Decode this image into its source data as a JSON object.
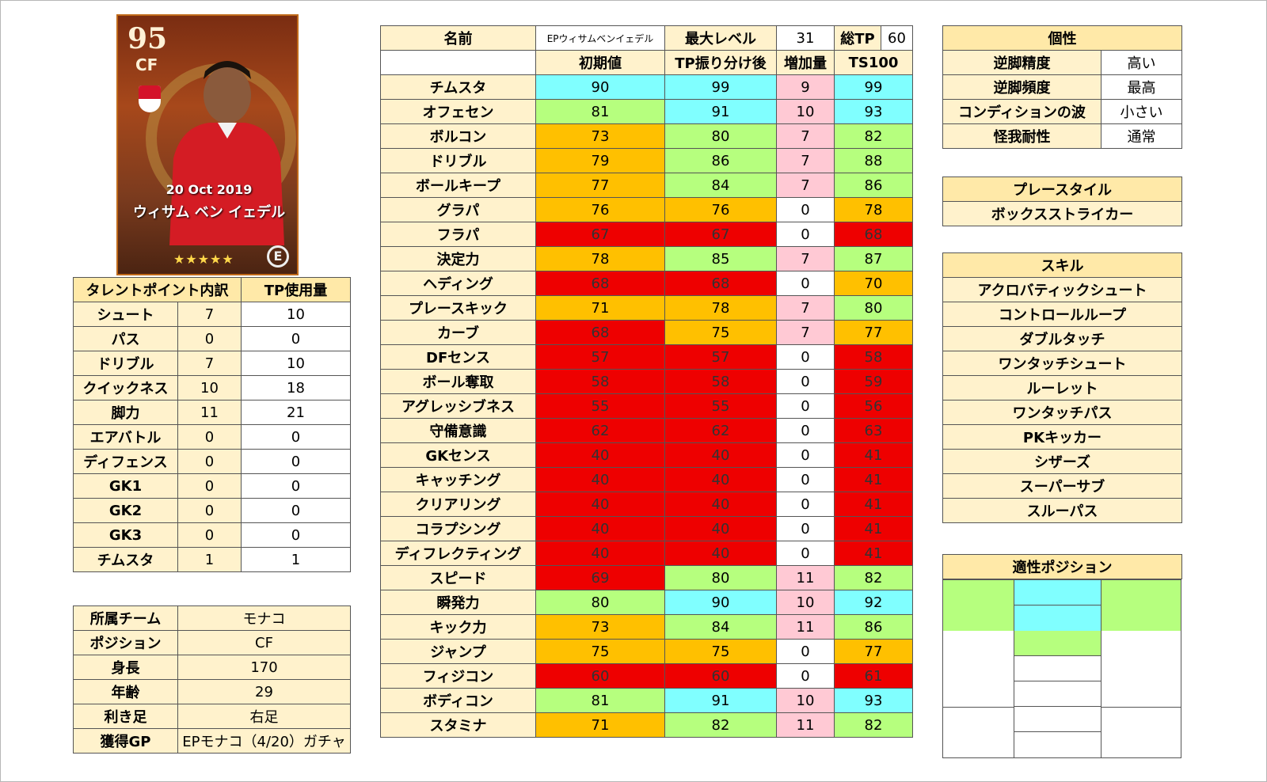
{
  "card": {
    "rating": "95",
    "position": "CF",
    "date": "20 Oct 2019",
    "name": "ウィサム ベン イェデル",
    "stars": "★★★★★",
    "logo": "E"
  },
  "talent": {
    "header": [
      "タレントポイント内訳",
      "TP使用量"
    ],
    "rows": [
      {
        "label": "シュート",
        "points": "7",
        "tp": "10"
      },
      {
        "label": "パス",
        "points": "0",
        "tp": "0"
      },
      {
        "label": "ドリブル",
        "points": "7",
        "tp": "10"
      },
      {
        "label": "クイックネス",
        "points": "10",
        "tp": "18"
      },
      {
        "label": "脚力",
        "points": "11",
        "tp": "21"
      },
      {
        "label": "エアバトル",
        "points": "0",
        "tp": "0"
      },
      {
        "label": "ディフェンス",
        "points": "0",
        "tp": "0"
      },
      {
        "label": "GK1",
        "points": "0",
        "tp": "0"
      },
      {
        "label": "GK2",
        "points": "0",
        "tp": "0"
      },
      {
        "label": "GK3",
        "points": "0",
        "tp": "0"
      },
      {
        "label": "チムスタ",
        "points": "1",
        "tp": "1"
      }
    ]
  },
  "info": {
    "rows": [
      {
        "label": "所属チーム",
        "value": "モナコ"
      },
      {
        "label": "ポジション",
        "value": "CF"
      },
      {
        "label": "身長",
        "value": "170"
      },
      {
        "label": "年齢",
        "value": "29"
      },
      {
        "label": "利き足",
        "value": "右足"
      },
      {
        "label": "獲得GP",
        "value": "EPモナコ（4/20）ガチャ"
      }
    ]
  },
  "stats": {
    "name_label": "名前",
    "name_value": "EPウィサムベンイェデル",
    "max_level_label": "最大レベル",
    "max_level_value": "31",
    "total_tp_label": "総TP",
    "total_tp_value": "60",
    "columns": [
      "初期値",
      "TP振り分け後",
      "増加量",
      "TS100"
    ],
    "rows": [
      {
        "label": "チムスタ",
        "base": "90",
        "after": "99",
        "inc": "9",
        "ts": "99",
        "c": [
          "cyan",
          "cyan",
          "pink",
          "cyan"
        ]
      },
      {
        "label": "オフェセン",
        "base": "81",
        "after": "91",
        "inc": "10",
        "ts": "93",
        "c": [
          "green",
          "cyan",
          "pink",
          "cyan"
        ]
      },
      {
        "label": "ボルコン",
        "base": "73",
        "after": "80",
        "inc": "7",
        "ts": "82",
        "c": [
          "orange",
          "green",
          "pink",
          "green"
        ]
      },
      {
        "label": "ドリブル",
        "base": "79",
        "after": "86",
        "inc": "7",
        "ts": "88",
        "c": [
          "orange",
          "green",
          "pink",
          "green"
        ]
      },
      {
        "label": "ボールキープ",
        "base": "77",
        "after": "84",
        "inc": "7",
        "ts": "86",
        "c": [
          "orange",
          "green",
          "pink",
          "green"
        ]
      },
      {
        "label": "グラパ",
        "base": "76",
        "after": "76",
        "inc": "0",
        "ts": "78",
        "c": [
          "orange",
          "orange",
          "white",
          "orange"
        ]
      },
      {
        "label": "フラパ",
        "base": "67",
        "after": "67",
        "inc": "0",
        "ts": "68",
        "c": [
          "red",
          "red",
          "white",
          "red"
        ]
      },
      {
        "label": "決定力",
        "base": "78",
        "after": "85",
        "inc": "7",
        "ts": "87",
        "c": [
          "orange",
          "green",
          "pink",
          "green"
        ]
      },
      {
        "label": "ヘディング",
        "base": "68",
        "after": "68",
        "inc": "0",
        "ts": "70",
        "c": [
          "red",
          "red",
          "white",
          "orange"
        ]
      },
      {
        "label": "プレースキック",
        "base": "71",
        "after": "78",
        "inc": "7",
        "ts": "80",
        "c": [
          "orange",
          "orange",
          "pink",
          "green"
        ]
      },
      {
        "label": "カーブ",
        "base": "68",
        "after": "75",
        "inc": "7",
        "ts": "77",
        "c": [
          "red",
          "orange",
          "pink",
          "orange"
        ]
      },
      {
        "label": "DFセンス",
        "base": "57",
        "after": "57",
        "inc": "0",
        "ts": "58",
        "c": [
          "red",
          "red",
          "white",
          "red"
        ]
      },
      {
        "label": "ボール奪取",
        "base": "58",
        "after": "58",
        "inc": "0",
        "ts": "59",
        "c": [
          "red",
          "red",
          "white",
          "red"
        ]
      },
      {
        "label": "アグレッシブネス",
        "base": "55",
        "after": "55",
        "inc": "0",
        "ts": "56",
        "c": [
          "red",
          "red",
          "white",
          "red"
        ]
      },
      {
        "label": "守備意識",
        "base": "62",
        "after": "62",
        "inc": "0",
        "ts": "63",
        "c": [
          "red",
          "red",
          "white",
          "red"
        ]
      },
      {
        "label": "GKセンス",
        "base": "40",
        "after": "40",
        "inc": "0",
        "ts": "41",
        "c": [
          "red",
          "red",
          "white",
          "red"
        ]
      },
      {
        "label": "キャッチング",
        "base": "40",
        "after": "40",
        "inc": "0",
        "ts": "41",
        "c": [
          "red",
          "red",
          "white",
          "red"
        ]
      },
      {
        "label": "クリアリング",
        "base": "40",
        "after": "40",
        "inc": "0",
        "ts": "41",
        "c": [
          "red",
          "red",
          "white",
          "red"
        ]
      },
      {
        "label": "コラプシング",
        "base": "40",
        "after": "40",
        "inc": "0",
        "ts": "41",
        "c": [
          "red",
          "red",
          "white",
          "red"
        ]
      },
      {
        "label": "ディフレクティング",
        "base": "40",
        "after": "40",
        "inc": "0",
        "ts": "41",
        "c": [
          "red",
          "red",
          "white",
          "red"
        ]
      },
      {
        "label": "スピード",
        "base": "69",
        "after": "80",
        "inc": "11",
        "ts": "82",
        "c": [
          "red",
          "green",
          "pink",
          "green"
        ]
      },
      {
        "label": "瞬発力",
        "base": "80",
        "after": "90",
        "inc": "10",
        "ts": "92",
        "c": [
          "green",
          "cyan",
          "pink",
          "cyan"
        ]
      },
      {
        "label": "キック力",
        "base": "73",
        "after": "84",
        "inc": "11",
        "ts": "86",
        "c": [
          "orange",
          "green",
          "pink",
          "green"
        ]
      },
      {
        "label": "ジャンプ",
        "base": "75",
        "after": "75",
        "inc": "0",
        "ts": "77",
        "c": [
          "orange",
          "orange",
          "white",
          "orange"
        ]
      },
      {
        "label": "フィジコン",
        "base": "60",
        "after": "60",
        "inc": "0",
        "ts": "61",
        "c": [
          "red",
          "red",
          "white",
          "red"
        ]
      },
      {
        "label": "ボディコン",
        "base": "81",
        "after": "91",
        "inc": "10",
        "ts": "93",
        "c": [
          "green",
          "cyan",
          "pink",
          "cyan"
        ]
      },
      {
        "label": "スタミナ",
        "base": "71",
        "after": "82",
        "inc": "11",
        "ts": "82",
        "c": [
          "orange",
          "green",
          "pink",
          "green"
        ]
      }
    ]
  },
  "personality": {
    "title": "個性",
    "rows": [
      {
        "label": "逆脚精度",
        "value": "高い"
      },
      {
        "label": "逆脚頻度",
        "value": "最高"
      },
      {
        "label": "コンディションの波",
        "value": "小さい"
      },
      {
        "label": "怪我耐性",
        "value": "通常"
      }
    ]
  },
  "playstyle": {
    "title": "プレースタイル",
    "value": "ボックスストライカー"
  },
  "skills": {
    "title": "スキル",
    "items": [
      "アクロバティックシュート",
      "コントロールループ",
      "ダブルタッチ",
      "ワンタッチシュート",
      "ルーレット",
      "ワンタッチパス",
      "PKキッカー",
      "シザーズ",
      "スーパーサブ",
      "スルーパス"
    ]
  },
  "positions": {
    "title": "適性ポジション",
    "colors": {
      "best": "#80ffff",
      "good": "#b6ff7e",
      "none": "#ffffff"
    }
  },
  "colors": {
    "header": "#ffe9a8",
    "label": "#fff2cc",
    "cyan": "#80ffff",
    "green": "#b6ff7e",
    "orange": "#ffc000",
    "red": "#ee0000",
    "pink": "#ffc9d4"
  }
}
